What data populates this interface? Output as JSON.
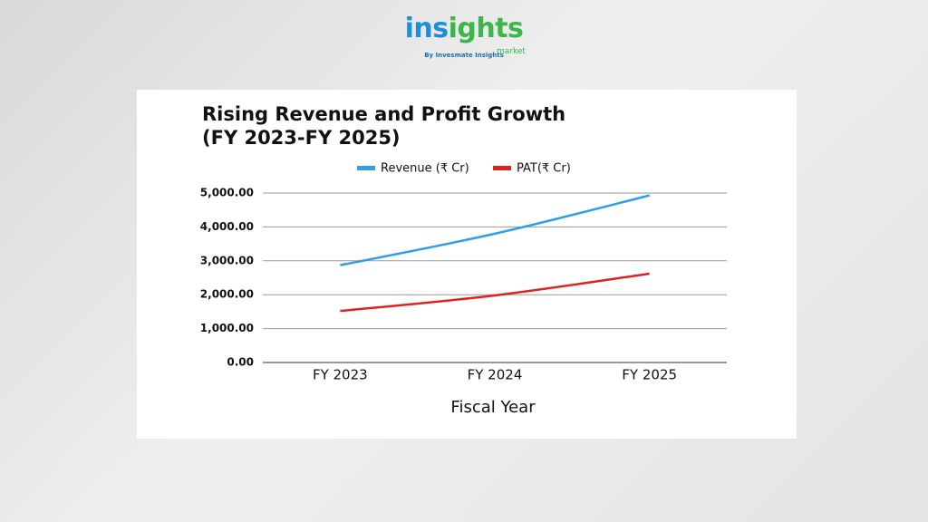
{
  "header": {
    "brand": "insights",
    "brand_sub": "market",
    "tagline": "By Invesmate Insights"
  },
  "chart_data": {
    "type": "line",
    "title": "Rising Revenue and Profit Growth (FY 2023-FY 2025)",
    "x_label": "Fiscal Year",
    "categories": [
      "FY 2023",
      "FY 2024",
      "FY 2025"
    ],
    "series": [
      {
        "name": "Revenue (₹ Cr)",
        "color": "#2e9ee8",
        "values": [
          2870,
          3800,
          4930
        ]
      },
      {
        "name": "PAT(₹ Cr)",
        "color": "#dd2222",
        "values": [
          1520,
          1980,
          2620
        ]
      }
    ],
    "ylim": [
      0,
      5000
    ],
    "yticks": [
      {
        "value": 0,
        "label": "0.00"
      },
      {
        "value": 1000,
        "label": "1,000.00"
      },
      {
        "value": 2000,
        "label": "2,000.00"
      },
      {
        "value": 3000,
        "label": "3,000.00"
      },
      {
        "value": 4000,
        "label": "4,000.00"
      },
      {
        "value": 5000,
        "label": "5,000.00"
      }
    ],
    "grid": true,
    "legend": "top"
  }
}
